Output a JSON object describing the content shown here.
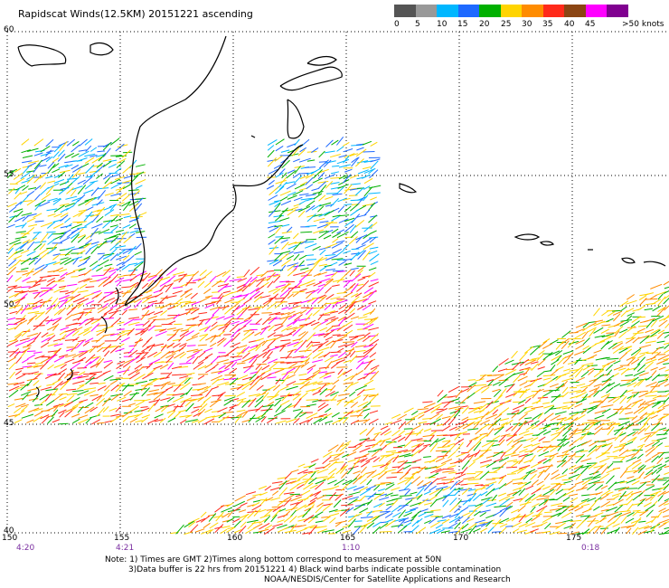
{
  "title": "Rapidscat Winds(12.5KM) 20151221 ascending",
  "legend": {
    "labels": [
      "0",
      "5",
      "10",
      "15",
      "20",
      "25",
      "30",
      "35",
      "40",
      "45",
      ">50 knots"
    ],
    "colors": [
      "#555555",
      "#999999",
      "#00b7ff",
      "#1e69ff",
      "#00b000",
      "#ffd400",
      "#ff8c00",
      "#ff2a1a",
      "#8b4513",
      "#ff00ff",
      "#800090"
    ]
  },
  "axes": {
    "lat_labels": [
      "60",
      "55",
      "50",
      "45",
      "40"
    ],
    "lon_labels": [
      "150",
      "155",
      "160",
      "165",
      "170",
      "175"
    ],
    "time_labels": [
      "4:20",
      "4:21",
      "1:10",
      "0:18"
    ]
  },
  "note": {
    "line1": "Note: 1) Times are GMT 2)Times along bottom correspond to measurement at 50N",
    "line2": "3)Data buffer is 22 hrs from 20151221 4) Black wind barbs indicate possible contamination",
    "line3": "NOAA/NESDIS/Center for Satellite Applications and Research"
  }
}
